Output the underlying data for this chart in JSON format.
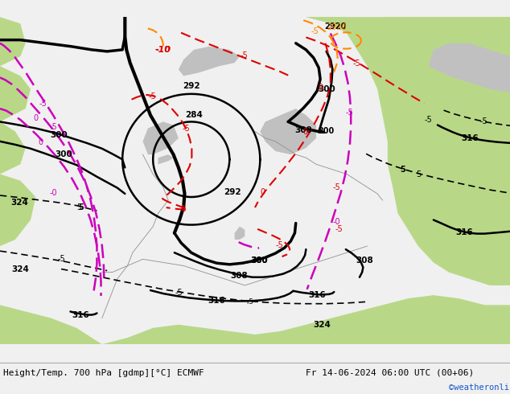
{
  "title_left": "Height/Temp. 700 hPa [gdmp][°C] ECMWF",
  "title_right": "Fr 14-06-2024 06:00 UTC (00+06)",
  "credit": "©weatheronline.co.uk",
  "footer_bg": "#f0f0f0",
  "map_bg": "#d8d8d8",
  "green1": "#b8d888",
  "green2": "#c8e098",
  "gray1": "#c0c0c0",
  "black": "#000000",
  "red": "#dd0000",
  "magenta": "#cc00bb",
  "orange": "#ff8800",
  "footer_fontsize": 8.0,
  "credit_fontsize": 7.5,
  "credit_color": "#1155cc"
}
